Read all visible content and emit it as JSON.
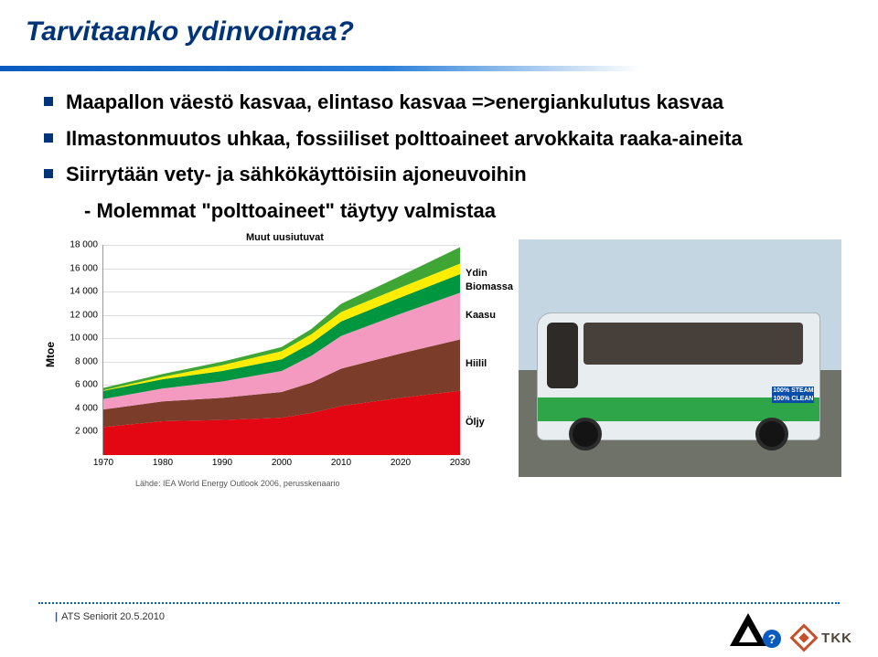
{
  "slide": {
    "title": "Tarvitaanko ydinvoimaa?",
    "bullets": [
      "Maapallon väestö kasvaa, elintaso kasvaa =>energiankulutus kasvaa",
      "Ilmastonmuutos uhkaa, fossiiliset polttoaineet arvokkaita raaka-aineita",
      "Siirrytään vety- ja sähkökäyttöisiin ajoneuvoihin"
    ],
    "subbullet": "- Molemmat \"polttoaineet\" täytyy valmistaa"
  },
  "chart": {
    "type": "area",
    "ylabel": "Mtoe",
    "xlim": [
      1970,
      2030
    ],
    "xticks": [
      1970,
      1980,
      1990,
      2000,
      2010,
      2020,
      2030
    ],
    "ylim": [
      0,
      18000
    ],
    "yticks": [
      2000,
      4000,
      6000,
      8000,
      10000,
      12000,
      14000,
      16000,
      18000
    ],
    "ytick_labels": [
      "2 000",
      "4 000",
      "6 000",
      "8 000",
      "10 000",
      "12 000",
      "14 000",
      "16 000",
      "18 000"
    ],
    "series": [
      {
        "name": "Öljy",
        "color": "#e30613",
        "values": [
          2400,
          2900,
          3000,
          3200,
          3600,
          4200,
          4900,
          5500
        ]
      },
      {
        "name": "Hiilil",
        "color": "#7b3c2a",
        "values": [
          1500,
          1700,
          1900,
          2200,
          2600,
          3200,
          3800,
          4400
        ]
      },
      {
        "name": "Kaasu",
        "color": "#f49ac1",
        "values": [
          900,
          1100,
          1400,
          1800,
          2300,
          2800,
          3400,
          4000
        ]
      },
      {
        "name": "Biomassa",
        "color": "#009640",
        "values": [
          700,
          800,
          900,
          1000,
          1100,
          1250,
          1400,
          1600
        ]
      },
      {
        "name": "Ydin",
        "color": "#ffed00",
        "values": [
          50,
          200,
          500,
          700,
          750,
          800,
          850,
          900
        ]
      },
      {
        "name": "Muut uusiutuvat",
        "color": "#3fa535",
        "values": [
          200,
          250,
          300,
          350,
          450,
          700,
          1000,
          1400
        ]
      }
    ],
    "x_positions": [
      1970,
      1980,
      1990,
      2000,
      2005,
      2010,
      2020,
      2030
    ],
    "muut_label": "Muut uusiutuvat",
    "right_labels": [
      {
        "text": "Ydin",
        "y": 15600
      },
      {
        "text": "Biomassa",
        "y": 14400
      },
      {
        "text": "Kaasu",
        "y": 12000
      },
      {
        "text": "Hiilil",
        "y": 7800
      },
      {
        "text": "Öljy",
        "y": 2800
      }
    ],
    "caption": "Lähde: IEA World Energy Outlook 2006, perusskenaario"
  },
  "photo": {
    "ecobus": "ecobus",
    "sign": "100% STEAM 100% CLEAN"
  },
  "footer": {
    "text": "ATS Seniorit 20.5.2010",
    "tkk": "TKK",
    "q": "?"
  }
}
